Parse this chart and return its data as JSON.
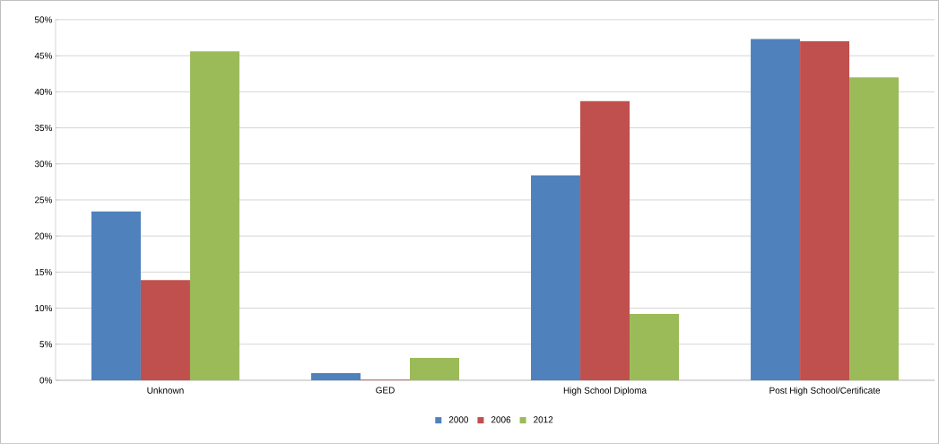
{
  "chart_data": {
    "type": "bar",
    "categories": [
      "Unknown",
      "GED",
      "High School Diploma",
      "Post High School/Certificate"
    ],
    "series": [
      {
        "name": "2000",
        "color": "#4f81bd",
        "values": [
          23.4,
          1.0,
          28.4,
          47.3
        ]
      },
      {
        "name": "2006",
        "color": "#c0504d",
        "values": [
          13.9,
          0.1,
          38.7,
          47.0
        ]
      },
      {
        "name": "2012",
        "color": "#9bbb59",
        "values": [
          45.6,
          3.1,
          9.2,
          42.0
        ]
      }
    ],
    "ylim": [
      0,
      50
    ],
    "yticks": [
      {
        "value": 0,
        "label": "0%"
      },
      {
        "value": 5,
        "label": "5%"
      },
      {
        "value": 10,
        "label": "10%"
      },
      {
        "value": 15,
        "label": "15%"
      },
      {
        "value": 20,
        "label": "20%"
      },
      {
        "value": 25,
        "label": "25%"
      },
      {
        "value": 30,
        "label": "30%"
      },
      {
        "value": 35,
        "label": "35%"
      },
      {
        "value": 40,
        "label": "40%"
      },
      {
        "value": 45,
        "label": "45%"
      },
      {
        "value": 50,
        "label": "50%"
      }
    ],
    "grid": "y",
    "legend": "bottom"
  }
}
